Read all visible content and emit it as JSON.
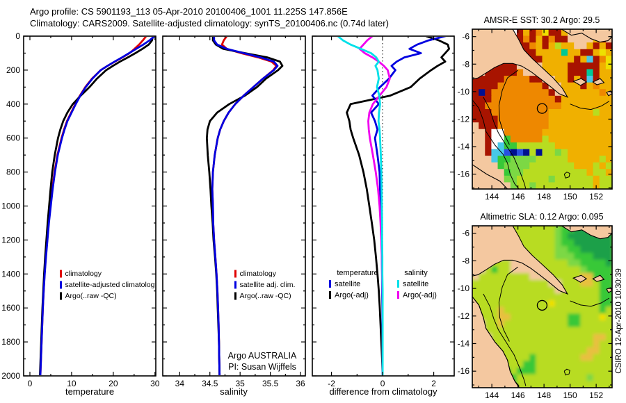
{
  "header": {
    "line1": "Argo profile: CS 5901193_113 05-Apr-2010 20100406_1001 11.225S 147.856E",
    "line2": "Climatology: CARS2009. Satellite-adjusted climatology: synTS_20100406.nc (0.74d later)"
  },
  "footer_stamp": "CSIRO 12-Apr-2010 10:30:39",
  "colors": {
    "climatology": "#e00000",
    "satellite": "#0000e0",
    "argo": "#000000",
    "salinity_satellite": "#00e0e8",
    "salinity_argo": "#f000f0",
    "land": "#f4c8a0"
  },
  "chart_data": {
    "depths": [
      0,
      25,
      50,
      75,
      100,
      125,
      150,
      175,
      200,
      250,
      300,
      350,
      400,
      450,
      500,
      550,
      600,
      700,
      800,
      900,
      1000,
      1100,
      1200,
      1300,
      1400,
      1500,
      1600,
      1700,
      1800,
      1900,
      2000
    ],
    "depth_range": [
      0,
      2000
    ],
    "depth_ticks": [
      0,
      200,
      400,
      600,
      800,
      1000,
      1200,
      1400,
      1600,
      1800,
      2000
    ],
    "depth_minor_ticks": [
      100,
      300,
      500,
      700,
      900,
      1100,
      1300,
      1500,
      1700,
      1900
    ],
    "temperature_profile": {
      "type": "line",
      "xlabel": "temperature",
      "xlim": [
        -1.5,
        30.2
      ],
      "xticks": [
        0,
        10,
        20,
        30
      ],
      "xminor": [
        5,
        15,
        25
      ],
      "legend": [
        {
          "label": "climatology",
          "color": "#e00000"
        },
        {
          "label": "satellite-adjusted climatology",
          "color": "#0000e0"
        },
        {
          "label": "Argo(..raw -QC)",
          "color": "#000000"
        }
      ],
      "series": [
        {
          "name": "climatology",
          "color": "#e00000",
          "values": [
            27.9,
            27.1,
            26.2,
            25.1,
            23.9,
            22.2,
            20.4,
            18.6,
            17.0,
            14.9,
            13.3,
            12.0,
            10.9,
            9.9,
            8.9,
            8.2,
            7.6,
            6.6,
            5.9,
            5.35,
            4.9,
            4.5,
            4.15,
            3.8,
            3.5,
            3.3,
            3.1,
            2.95,
            2.8,
            2.65,
            2.5
          ]
        },
        {
          "name": "Argo(..raw -QC)",
          "color": "#000000",
          "values": [
            29.5,
            29.3,
            28.5,
            27.0,
            25.3,
            23.5,
            21.6,
            19.9,
            18.3,
            16.1,
            14.3,
            12.2,
            10.3,
            9.0,
            8.0,
            7.3,
            6.75,
            5.95,
            5.35,
            4.95,
            4.6,
            4.25,
            3.95,
            3.65,
            3.4,
            3.2,
            3.0,
            2.85,
            2.7,
            2.55,
            2.4
          ]
        },
        {
          "name": "satellite-adjusted climatology",
          "color": "#0000e0",
          "values": [
            29.9,
            28.7,
            27.2,
            25.5,
            23.8,
            22.1,
            20.3,
            18.6,
            17.0,
            15.0,
            13.4,
            12.1,
            11.0,
            10.0,
            9.0,
            8.3,
            7.7,
            6.7,
            6.0,
            5.45,
            5.0,
            4.55,
            4.2,
            3.85,
            3.55,
            3.3,
            3.1,
            2.95,
            2.8,
            2.65,
            2.5
          ]
        }
      ]
    },
    "salinity_profile": {
      "type": "line",
      "xlabel": "salinity",
      "xlim": [
        33.72,
        36.08
      ],
      "xticks": [
        34,
        34.5,
        35,
        35.5,
        36
      ],
      "xminor": [
        34.25,
        34.75,
        35.25,
        35.75
      ],
      "annotation_line1": "Argo AUSTRALIA",
      "annotation_line2": "PI: Susan Wijffels",
      "legend": [
        {
          "label": "climatology",
          "color": "#e00000"
        },
        {
          "label": "satellite adj. clim.",
          "color": "#0000e0"
        },
        {
          "label": "Argo(..raw -QC)",
          "color": "#000000"
        }
      ],
      "series": [
        {
          "name": "climatology",
          "color": "#e00000",
          "values": [
            34.78,
            34.73,
            34.7,
            34.78,
            35.02,
            35.3,
            35.52,
            35.6,
            35.55,
            35.38,
            35.22,
            35.06,
            34.92,
            34.81,
            34.73,
            34.67,
            34.63,
            34.58,
            34.55,
            34.54,
            34.55,
            34.555,
            34.57,
            34.59,
            34.61,
            34.625,
            34.635,
            34.645,
            34.65,
            34.655,
            34.66
          ]
        },
        {
          "name": "Argo(..raw -QC)",
          "color": "#000000",
          "values": [
            34.55,
            34.55,
            34.6,
            34.72,
            35.08,
            35.45,
            35.66,
            35.7,
            35.63,
            35.43,
            35.28,
            35.08,
            34.82,
            34.62,
            34.5,
            34.46,
            34.45,
            34.465,
            34.49,
            34.51,
            34.525,
            34.545,
            34.56,
            34.585,
            34.605,
            34.62,
            34.63,
            34.64,
            34.65,
            34.655,
            34.66
          ]
        },
        {
          "name": "satellite adj. clim.",
          "color": "#0000e0",
          "values": [
            34.57,
            34.57,
            34.62,
            34.78,
            35.06,
            35.34,
            35.56,
            35.62,
            35.56,
            35.38,
            35.22,
            35.06,
            34.92,
            34.81,
            34.73,
            34.67,
            34.63,
            34.58,
            34.55,
            34.54,
            34.55,
            34.555,
            34.57,
            34.59,
            34.61,
            34.625,
            34.635,
            34.645,
            34.65,
            34.655,
            34.66
          ]
        }
      ]
    },
    "difference_profile": {
      "type": "line",
      "xlabel": "difference from climatology",
      "xlim": [
        -2.75,
        2.8
      ],
      "xticks": [
        -2,
        0,
        2
      ],
      "xminor": [
        -1,
        1
      ],
      "zero_line": 0,
      "legend_groups": [
        {
          "header": "temperature",
          "items": [
            {
              "label": "satellite",
              "color": "#0000e0"
            },
            {
              "label": "Argo(-adj)",
              "color": "#000000"
            }
          ]
        },
        {
          "header": "salinity",
          "items": [
            {
              "label": "satellite",
              "color": "#00e0e8"
            },
            {
              "label": "Argo(-adj)",
              "color": "#f000f0"
            }
          ]
        }
      ],
      "series": [
        {
          "name": "temperature Argo(-adj)",
          "color": "#000000",
          "values": [
            1.7,
            2.2,
            2.55,
            2.6,
            2.45,
            2.3,
            2.45,
            2.15,
            1.9,
            1.45,
            1.1,
            0.3,
            -1.25,
            -1.4,
            -1.3,
            -1.25,
            -1.15,
            -0.92,
            -0.75,
            -0.62,
            -0.52,
            -0.42,
            -0.33,
            -0.26,
            -0.2,
            -0.15,
            -0.11,
            -0.08,
            -0.05,
            -0.02,
            0
          ]
        },
        {
          "name": "temperature satellite",
          "color": "#0000e0",
          "values": [
            2.45,
            1.8,
            1.35,
            1.05,
            1.5,
            0.85,
            0.55,
            0.35,
            0.5,
            0.25,
            -0.1,
            -0.4,
            -0.15,
            -0.45,
            -0.3,
            -0.2,
            -0.3,
            -0.2,
            -0.12,
            -0.1,
            -0.07,
            -0.05,
            -0.04,
            -0.03,
            -0.02,
            -0.02,
            -0.01,
            -0.01,
            0,
            0,
            0
          ]
        },
        {
          "name": "salinity Argo(-adj)",
          "color": "#f000f0",
          "values": [
            -0.4,
            -0.6,
            -0.75,
            -0.9,
            -0.7,
            -0.4,
            -0.15,
            0.05,
            0.2,
            0.28,
            0.15,
            -0.12,
            -0.38,
            -0.52,
            -0.56,
            -0.54,
            -0.5,
            -0.38,
            -0.27,
            -0.18,
            -0.12,
            -0.08,
            -0.05,
            -0.03,
            -0.02,
            -0.01,
            0,
            0,
            0,
            0,
            0
          ]
        },
        {
          "name": "salinity satellite",
          "color": "#00e0e8",
          "values": [
            -1.75,
            -1.55,
            -1.25,
            -0.85,
            -0.45,
            -0.25,
            -0.15,
            -0.28,
            -0.2,
            -0.15,
            -0.22,
            -0.13,
            -0.1,
            -0.14,
            -0.16,
            -0.12,
            -0.1,
            -0.07,
            -0.05,
            -0.04,
            -0.03,
            -0.02,
            -0.02,
            -0.01,
            -0.01,
            0,
            0,
            0,
            0,
            0,
            0
          ]
        }
      ]
    },
    "sst_map": {
      "type": "heatmap",
      "title": "AMSR-E SST: 30.2 Argo: 29.5",
      "sst_value": 30.2,
      "argo_value": 29.5,
      "lon_range": [
        142.5,
        153.22
      ],
      "lat_range": [
        -5.46,
        -17.08
      ],
      "lon_ticks": [
        144,
        146,
        148,
        150,
        152
      ],
      "lon_minor": [
        143,
        145,
        147,
        149,
        151,
        153
      ],
      "lat_ticks": [
        -6,
        -8,
        -10,
        -12,
        -14,
        -16
      ],
      "lat_minor": [
        -7,
        -9,
        -11,
        -13,
        -15,
        -17
      ],
      "blur": false,
      "land": [
        "png",
        "nb",
        "isl1",
        "isl2",
        "isl3",
        "aus_small"
      ],
      "grid": [
        "LLLLLLwdydoYddyLLLyoLL",
        "LLLLLLLdodydoddLLLLydL",
        "LLLLLLLddoydygyyLLydyd",
        "LLLLLLLLddyyyytyyddyYy",
        "LLLLLLLLLddyyyyydycdoY",
        "LLLddddLLLLyyyydddddyY",
        "LLdddddoLLLyyyydddtdyy",
        "dddddooooddLLyydydcdyy",
        "ddddooooooodLLyyydyoyy",
        "dBdooooooooodLyyyyyyoy",
        "dddoooooooooodyyyyyyyy",
        "ddooooooooooooyyyyyyyy",
        "dddoooooooooyyyyyyygyy",
        "ddddooooooooyyyyyyyyyy",
        "Ldddooooooooyyyyyyyyyy",
        "LLdwwooooooyyyyyyyyyyy",
        "LLdwwGooooogyyyyyyyyyy",
        "LLdwcGGggggggyyyyyyyyy",
        "LLdccbBbBgBggegyyyyyyy",
        "LLLcGGeeeegggggyyyyygy",
        "LLLLGeeeegggggggyyygyg",
        "LLLLLGeeggggggggggyggy",
        "LLLLLeegggggeggggggygg",
        "LLLLLLeggegggggggggygg"
      ]
    },
    "sla_map": {
      "type": "heatmap",
      "title": "Altimetric SLA: 0.12 Argo: 0.095",
      "sla_value": 0.12,
      "argo_value": 0.095,
      "lon_range": [
        142.5,
        153.22
      ],
      "lat_range": [
        -5.46,
        -17.2
      ],
      "lon_ticks": [
        144,
        146,
        148,
        150,
        152
      ],
      "lon_minor": [
        143,
        145,
        147,
        149,
        151,
        153
      ],
      "lat_ticks": [
        -6,
        -8,
        -10,
        -12,
        -14,
        -16
      ],
      "lat_minor": [
        -7,
        -9,
        -11,
        -13,
        -15,
        -17
      ],
      "blur": true,
      "land": [
        "png",
        "nb",
        "isl1",
        "isl2",
        "isl3",
        "aus_large"
      ],
      "grid": [
        "LLLLLLgggggggeGGnnnnnn",
        "LLLLLLgggggggeGnnnnnnn",
        "LLLLLLLggggggeGGnnnnnn",
        "LLLLLLLggggggeeGGnnnnn",
        "LLLLLLLLgggggeeeGGGnnn",
        "LLLgggLLLLgggggeeGGGGn",
        "LLgGggLLLLgggggggeGGGG",
        "LggggggggLLLgggggqqGGG",
        "ggggggggggggLLgggqqgGG",
        "gggggggggggggLggggggGG",
        "ggggggggggggggggggggGG",
        "ggggggggggggYgggggggGG",
        "ggggqgggggggggggggggGg",
        "LgggqqgggggggggGGgggYg",
        "LLggqggggggggggGGggggg",
        "LLgggggggggggggggggggg",
        "LLLggggggggggggggggqqg",
        "LLLggggggggggggggggqgg",
        "LLLLggggggggggggggqqgg",
        "LLLLgggggGgggggggqqggg",
        "LLLLLgggGGgggggggggggg",
        "LLLLLGgGGGgggggggggggg",
        "LLLLLGGgggggggggggeggg",
        "LLLLLLGggggggggggggggg"
      ]
    },
    "float_marker": {
      "lon": 147.856,
      "lat": -11.225
    },
    "palette": {
      "L": "#f4c8a0",
      "d": "#a81400",
      "o": "#ee8800",
      "O": "#e07000",
      "y": "#f0b000",
      "Y": "#eee000",
      "g": "#b8dc20",
      "G": "#38c838",
      "e": "#7cd844",
      "t": "#00c896",
      "c": "#48c8e8",
      "b": "#2850e0",
      "B": "#001090",
      "w": "#ffffff",
      "n": "#1fa048",
      "q": "#e8c040"
    },
    "geo": {
      "png": [
        [
          142.5,
          -5.46
        ],
        [
          145.6,
          -5.46
        ],
        [
          146.05,
          -6.2
        ],
        [
          146.45,
          -6.95
        ],
        [
          147.1,
          -7.6
        ],
        [
          147.9,
          -8.3
        ],
        [
          148.7,
          -9.0
        ],
        [
          149.4,
          -9.75
        ],
        [
          149.8,
          -10.4
        ],
        [
          149.15,
          -10.15
        ],
        [
          148.45,
          -9.6
        ],
        [
          147.7,
          -9.05
        ],
        [
          147.0,
          -8.55
        ],
        [
          146.3,
          -8.15
        ],
        [
          145.6,
          -7.95
        ],
        [
          144.9,
          -7.95
        ],
        [
          144.2,
          -8.25
        ],
        [
          143.55,
          -8.65
        ],
        [
          142.95,
          -9.0
        ],
        [
          142.5,
          -9.1
        ]
      ],
      "nb": [
        [
          149.35,
          -5.46
        ],
        [
          150.1,
          -5.9
        ],
        [
          150.9,
          -5.75
        ],
        [
          151.6,
          -6.15
        ],
        [
          152.3,
          -6.4
        ],
        [
          152.9,
          -6.3
        ],
        [
          153.22,
          -6.0
        ],
        [
          153.22,
          -5.46
        ]
      ],
      "isl1": [
        [
          150.25,
          -9.25
        ],
        [
          150.85,
          -9.05
        ],
        [
          151.25,
          -9.3
        ],
        [
          150.8,
          -9.55
        ]
      ],
      "isl2": [
        [
          151.75,
          -9.3
        ],
        [
          152.3,
          -9.05
        ],
        [
          152.6,
          -9.35
        ],
        [
          152.05,
          -9.5
        ]
      ],
      "isl3": [
        [
          152.8,
          -10.05
        ],
        [
          153.1,
          -9.95
        ],
        [
          153.22,
          -10.15
        ],
        [
          152.95,
          -10.3
        ]
      ],
      "aus_small": [
        [
          142.5,
          -15.3
        ],
        [
          143.6,
          -16.0
        ],
        [
          144.6,
          -16.5
        ],
        [
          145.2,
          -17.08
        ],
        [
          142.5,
          -17.08
        ]
      ],
      "aus_large": [
        [
          142.5,
          -10.6
        ],
        [
          143.0,
          -11.2
        ],
        [
          143.35,
          -12.1
        ],
        [
          143.55,
          -12.9
        ],
        [
          144.25,
          -13.9
        ],
        [
          144.85,
          -14.55
        ],
        [
          145.2,
          -15.2
        ],
        [
          145.4,
          -16.0
        ],
        [
          145.75,
          -16.7
        ],
        [
          146.1,
          -17.2
        ],
        [
          142.5,
          -17.2
        ]
      ],
      "coastlines": [
        [
          [
            142.5,
            -10.6
          ],
          [
            143.0,
            -11.2
          ],
          [
            143.35,
            -12.1
          ],
          [
            143.55,
            -12.9
          ],
          [
            144.25,
            -13.9
          ],
          [
            144.85,
            -14.55
          ],
          [
            145.2,
            -15.2
          ],
          [
            145.4,
            -16.0
          ],
          [
            145.75,
            -16.7
          ],
          [
            146.1,
            -17.1
          ]
        ]
      ],
      "contours": [
        [
          [
            143.35,
            -10.4
          ],
          [
            143.85,
            -11.3
          ],
          [
            144.15,
            -12.2
          ],
          [
            144.5,
            -13.0
          ],
          [
            145.1,
            -13.9
          ],
          [
            145.7,
            -14.8
          ],
          [
            146.15,
            -15.8
          ],
          [
            146.5,
            -16.7
          ],
          [
            146.6,
            -17.08
          ]
        ],
        [
          [
            146.0,
            -8.45
          ],
          [
            145.2,
            -9.0
          ],
          [
            144.8,
            -9.9
          ],
          [
            144.55,
            -11.0
          ],
          [
            144.6,
            -12.1
          ],
          [
            144.9,
            -13.0
          ],
          [
            145.35,
            -13.85
          ]
        ],
        [
          [
            150.0,
            -10.9
          ],
          [
            150.8,
            -11.2
          ],
          [
            151.6,
            -11.3
          ],
          [
            152.4,
            -11.05
          ],
          [
            153.0,
            -10.7
          ]
        ],
        [
          [
            149.55,
            -16.0
          ],
          [
            149.75,
            -15.85
          ],
          [
            149.98,
            -15.95
          ],
          [
            149.92,
            -16.2
          ],
          [
            149.65,
            -16.28
          ],
          [
            149.55,
            -16.0
          ]
        ]
      ]
    }
  }
}
